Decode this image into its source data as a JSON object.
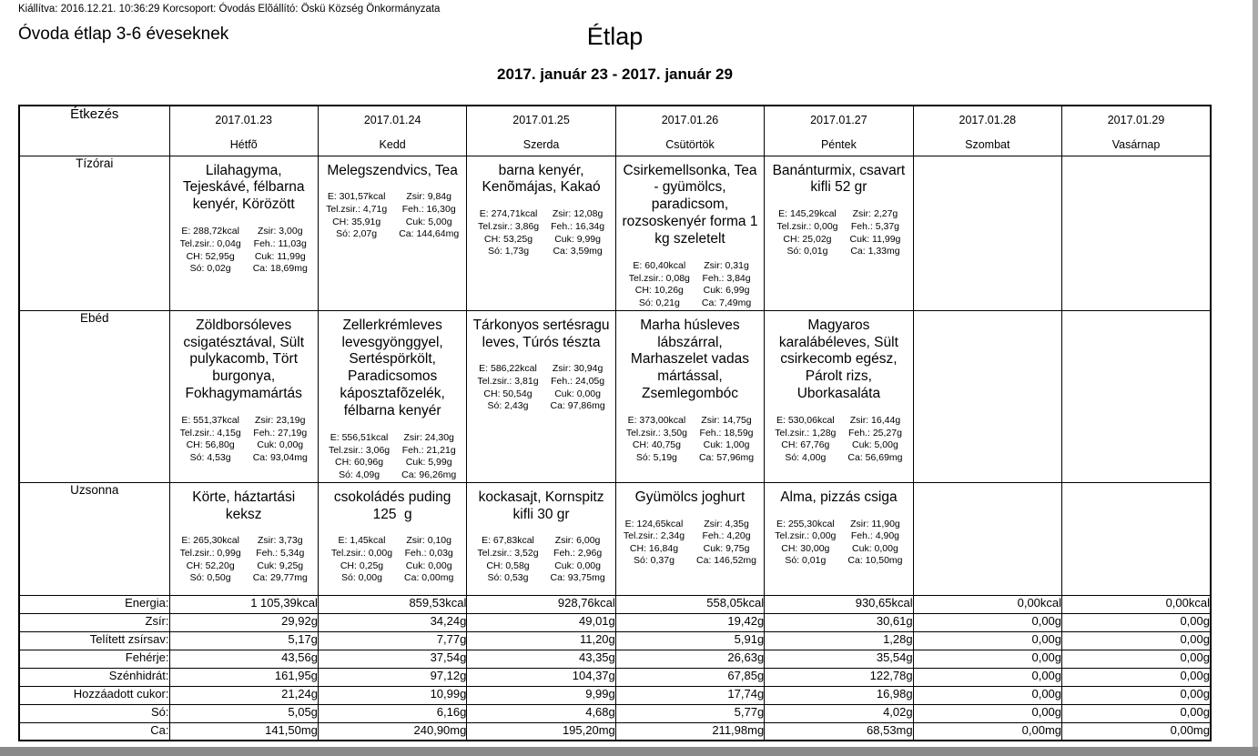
{
  "meta_line": "Kiállítva: 2016.12.21. 10:36:29 Korcsoport: Óvodás Elõállító: Öskü Község Önkormányzata",
  "page": {
    "left_title": "Óvoda étlap 3-6 éveseknek",
    "title": "Étlap",
    "date_range": "2017. január 23 - 2017. január 29"
  },
  "colors": {
    "text": "#000000",
    "background": "#ffffff",
    "table_border": "#000000",
    "edge_right": "#ababab",
    "edge_bottom": "#8a8a8a"
  },
  "table": {
    "corner_header": "Étkezés",
    "day_headers": [
      {
        "date": "2017.01.23",
        "day": "Hétfõ"
      },
      {
        "date": "2017.01.24",
        "day": "Kedd"
      },
      {
        "date": "2017.01.25",
        "day": "Szerda"
      },
      {
        "date": "2017.01.26",
        "day": "Csütörtök"
      },
      {
        "date": "2017.01.27",
        "day": "Péntek"
      },
      {
        "date": "2017.01.28",
        "day": "Szombat"
      },
      {
        "date": "2017.01.29",
        "day": "Vasárnap"
      }
    ],
    "meal_rows": [
      {
        "key": "tizorai",
        "label": "Tízórai",
        "cells": [
          {
            "dish": "Lilahagyma, Tejeskávé, félbarna kenyér, Körözött",
            "nutrition": {
              "left": [
                "E: 288,72kcal",
                "Tel.zsir.: 0,04g",
                "CH: 52,95g",
                "Só: 0,02g"
              ],
              "right": [
                "Zsir: 3,00g",
                "Feh.: 11,03g",
                "Cuk: 11,99g",
                "Ca: 18,69mg"
              ]
            }
          },
          {
            "dish": "Melegszendvics, Tea",
            "nutrition": {
              "left": [
                "E: 301,57kcal",
                "Tel.zsir.: 4,71g",
                "CH: 35,91g",
                "Só: 2,07g"
              ],
              "right": [
                "Zsir: 9,84g",
                "Feh.: 16,30g",
                "Cuk: 5,00g",
                "Ca: 144,64mg"
              ]
            }
          },
          {
            "dish": "barna kenyér, Kenõmájas, Kakaó",
            "nutrition": {
              "left": [
                "E: 274,71kcal",
                "Tel.zsir.: 3,86g",
                "CH: 53,25g",
                "Só: 1,73g"
              ],
              "right": [
                "Zsir: 12,08g",
                "Feh.: 16,34g",
                "Cuk: 9,99g",
                "Ca: 3,59mg"
              ]
            }
          },
          {
            "dish": "Csirkemellsonka, Tea - gyümölcs, paradicsom, rozsoskenyér forma 1 kg szeletelt",
            "nutrition": {
              "left": [
                "E: 60,40kcal",
                "Tel.zsir.: 0,08g",
                "CH: 10,26g",
                "Só: 0,21g"
              ],
              "right": [
                "Zsir: 0,31g",
                "Feh.: 3,84g",
                "Cuk: 6,99g",
                "Ca: 7,49mg"
              ]
            }
          },
          {
            "dish": "Banánturmix, csavart kifli 52 gr",
            "nutrition": {
              "left": [
                "E: 145,29kcal",
                "Tel.zsir.: 0,00g",
                "CH: 25,02g",
                "Só: 0,01g"
              ],
              "right": [
                "Zsir: 2,27g",
                "Feh.: 5,37g",
                "Cuk: 11,99g",
                "Ca: 1,33mg"
              ]
            }
          },
          null,
          null
        ]
      },
      {
        "key": "ebed",
        "label": "Ebéd",
        "cells": [
          {
            "dish": "Zöldborsóleves csigatésztával, Sült pulykacomb, Tört burgonya, Fokhagymamártás",
            "nutrition": {
              "left": [
                "E: 551,37kcal",
                "Tel.zsir.: 4,15g",
                "CH: 56,80g",
                "Só: 4,53g"
              ],
              "right": [
                "Zsir: 23,19g",
                "Feh.: 27,19g",
                "Cuk: 0,00g",
                "Ca: 93,04mg"
              ]
            }
          },
          {
            "dish": "Zellerkrémleves levesgyönggyel, Sertéspörkölt, Paradicsomos káposztafõzelék, félbarna kenyér",
            "nutrition": {
              "left": [
                "E: 556,51kcal",
                "Tel.zsir.: 3,06g",
                "CH: 60,96g",
                "Só: 4,09g"
              ],
              "right": [
                "Zsir: 24,30g",
                "Feh.: 21,21g",
                "Cuk: 5,99g",
                "Ca: 96,26mg"
              ]
            }
          },
          {
            "dish": "Tárkonyos sertésragu leves, Túrós tészta",
            "nutrition": {
              "left": [
                "E: 586,22kcal",
                "Tel.zsir.: 3,81g",
                "CH: 50,54g",
                "Só: 2,43g"
              ],
              "right": [
                "Zsir: 30,94g",
                "Feh.: 24,05g",
                "Cuk: 0,00g",
                "Ca: 97,86mg"
              ]
            }
          },
          {
            "dish": "Marha húsleves lábszárral, Marhaszelet vadas mártással, Zsemlegombóc",
            "nutrition": {
              "left": [
                "E: 373,00kcal",
                "Tel.zsir.: 3,50g",
                "CH: 40,75g",
                "Só: 5,19g"
              ],
              "right": [
                "Zsir: 14,75g",
                "Feh.: 18,59g",
                "Cuk: 1,00g",
                "Ca: 57,96mg"
              ]
            }
          },
          {
            "dish": "Magyaros karalábéleves, Sült csirkecomb egész, Párolt rizs, Uborkasaláta",
            "nutrition": {
              "left": [
                "E: 530,06kcal",
                "Tel.zsir.: 1,28g",
                "CH: 67,76g",
                "Só: 4,00g"
              ],
              "right": [
                "Zsir: 16,44g",
                "Feh.: 25,27g",
                "Cuk: 5,00g",
                "Ca: 56,69mg"
              ]
            }
          },
          null,
          null
        ]
      },
      {
        "key": "uzsonna",
        "label": "Uzsonna",
        "cells": [
          {
            "dish": "Körte, háztartási keksz",
            "nutrition": {
              "left": [
                "E: 265,30kcal",
                "Tel.zsir.: 0,99g",
                "CH: 52,20g",
                "Só: 0,50g"
              ],
              "right": [
                "Zsir: 3,73g",
                "Feh.: 5,34g",
                "Cuk: 9,25g",
                "Ca: 29,77mg"
              ]
            }
          },
          {
            "dish": "csokoládés puding 125  g",
            "nutrition": {
              "left": [
                "E: 1,45kcal",
                "Tel.zsir.: 0,00g",
                "CH: 0,25g",
                "Só: 0,00g"
              ],
              "right": [
                "Zsir: 0,10g",
                "Feh.: 0,03g",
                "Cuk: 0,00g",
                "Ca: 0,00mg"
              ]
            }
          },
          {
            "dish": "kockasajt, Kornspitz kifli 30 gr",
            "nutrition": {
              "left": [
                "E: 67,83kcal",
                "Tel.zsir.: 3,52g",
                "CH: 0,58g",
                "Só: 0,53g"
              ],
              "right": [
                "Zsir: 6,00g",
                "Feh.: 2,96g",
                "Cuk: 0,00g",
                "Ca: 93,75mg"
              ]
            }
          },
          {
            "dish": "Gyümölcs joghurt",
            "nutrition": {
              "left": [
                "E: 124,65kcal",
                "Tel.zsir.: 2,34g",
                "CH: 16,84g",
                "Só: 0,37g"
              ],
              "right": [
                "Zsir: 4,35g",
                "Feh.: 4,20g",
                "Cuk: 9,75g",
                "Ca: 146,52mg"
              ]
            }
          },
          {
            "dish": "Alma, pizzás csiga",
            "nutrition": {
              "left": [
                "E: 255,30kcal",
                "Tel.zsir.: 0,00g",
                "CH: 30,00g",
                "Só: 0,01g"
              ],
              "right": [
                "Zsir: 11,90g",
                "Feh.: 4,90g",
                "Cuk: 0,00g",
                "Ca: 10,50mg"
              ]
            }
          },
          null,
          null
        ]
      }
    ],
    "summary_rows": [
      {
        "label": "Energia:",
        "values": [
          "1 105,39kcal",
          "859,53kcal",
          "928,76kcal",
          "558,05kcal",
          "930,65kcal",
          "0,00kcal",
          "0,00kcal"
        ]
      },
      {
        "label": "Zsír:",
        "values": [
          "29,92g",
          "34,24g",
          "49,01g",
          "19,42g",
          "30,61g",
          "0,00g",
          "0,00g"
        ]
      },
      {
        "label": "Telített zsírsav:",
        "values": [
          "5,17g",
          "7,77g",
          "11,20g",
          "5,91g",
          "1,28g",
          "0,00g",
          "0,00g"
        ]
      },
      {
        "label": "Fehérje:",
        "values": [
          "43,56g",
          "37,54g",
          "43,35g",
          "26,63g",
          "35,54g",
          "0,00g",
          "0,00g"
        ]
      },
      {
        "label": "Szénhidrát:",
        "values": [
          "161,95g",
          "97,12g",
          "104,37g",
          "67,85g",
          "122,78g",
          "0,00g",
          "0,00g"
        ]
      },
      {
        "label": "Hozzáadott cukor:",
        "values": [
          "21,24g",
          "10,99g",
          "9,99g",
          "17,74g",
          "16,98g",
          "0,00g",
          "0,00g"
        ]
      },
      {
        "label": "Só:",
        "values": [
          "5,05g",
          "6,16g",
          "4,68g",
          "5,77g",
          "4,02g",
          "0,00g",
          "0,00g"
        ]
      },
      {
        "label": "Ca:",
        "values": [
          "141,50mg",
          "240,90mg",
          "195,20mg",
          "211,98mg",
          "68,53mg",
          "0,00mg",
          "0,00mg"
        ]
      }
    ]
  }
}
